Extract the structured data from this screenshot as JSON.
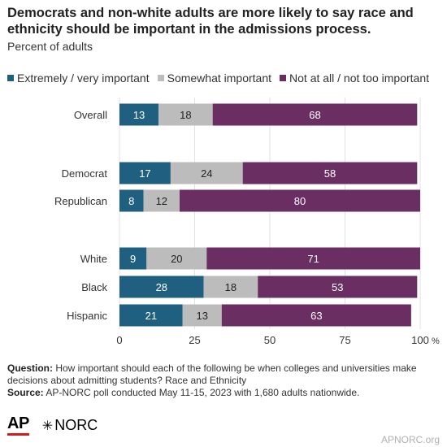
{
  "title": "Democrats and non-white adults are more likely to say race and ethnicity should be important in the admissions process.",
  "subtitle": "Percent of adults",
  "legend": [
    {
      "label": "Extremely / very important",
      "color": "#1f5f80"
    },
    {
      "label": "Somewhat important",
      "color": "#bcbcbc"
    },
    {
      "label": "Not at all / not too important",
      "color": "#6b2e63"
    }
  ],
  "chart_data": {
    "type": "bar",
    "orientation": "horizontal",
    "stacked": true,
    "categories": [
      "Overall",
      "Democrat",
      "Republican",
      "White",
      "Black",
      "Hispanic"
    ],
    "groups": [
      [
        "Overall"
      ],
      [
        "Democrat",
        "Republican"
      ],
      [
        "White",
        "Black",
        "Hispanic"
      ]
    ],
    "series": [
      {
        "name": "Extremely / very important",
        "color": "#1f5f80",
        "values": [
          13,
          17,
          8,
          9,
          28,
          21
        ]
      },
      {
        "name": "Somewhat important",
        "color": "#bcbcbc",
        "values": [
          18,
          24,
          12,
          20,
          18,
          13
        ]
      },
      {
        "name": "Not at all / not too important",
        "color": "#6b2e63",
        "values": [
          68,
          58,
          80,
          71,
          53,
          63
        ]
      }
    ],
    "xlim": [
      0,
      100
    ],
    "xticks": [
      "0",
      "25",
      "50",
      "75",
      "100"
    ],
    "x_unit": "%",
    "grid": true,
    "legend_position": "top"
  },
  "notes": {
    "question_label": "Question:",
    "question_text": "How important should each of the following be when colleges and universities make decisions about admitting students? Race and Ethnicity",
    "source_label": "Source:",
    "source_text": "AP-NORC poll conducted May 11-15, 2023 with 1,680 adults nationwide."
  },
  "branding": {
    "ap": "AP",
    "norc": "NORC",
    "credit": "APNORC.org"
  }
}
